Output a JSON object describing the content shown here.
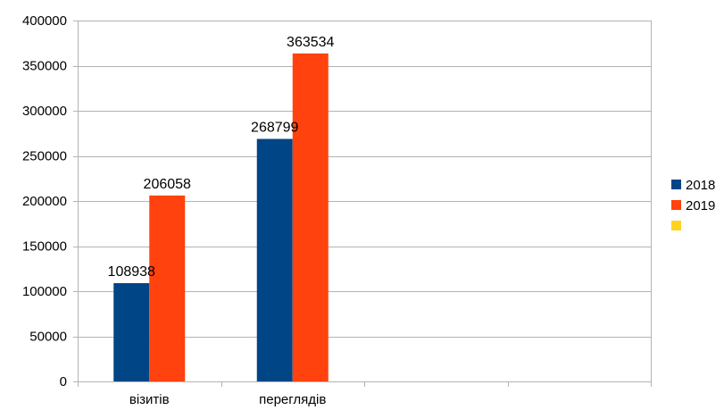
{
  "chart_data": {
    "type": "bar",
    "categories": [
      "візитів",
      "переглядів",
      "",
      ""
    ],
    "series": [
      {
        "name": "2018",
        "color": "#004586",
        "values": [
          108938,
          268799,
          null,
          null
        ]
      },
      {
        "name": "2019",
        "color": "#ff420e",
        "values": [
          206058,
          363534,
          null,
          null
        ]
      },
      {
        "name": "",
        "color": "#ffd320",
        "values": [
          null,
          null,
          null,
          null
        ]
      }
    ],
    "ylim": [
      0,
      400000
    ],
    "yticks": [
      0,
      50000,
      100000,
      150000,
      200000,
      250000,
      300000,
      350000,
      400000
    ],
    "grid": true,
    "legend_position": "right",
    "data_labels": true
  }
}
